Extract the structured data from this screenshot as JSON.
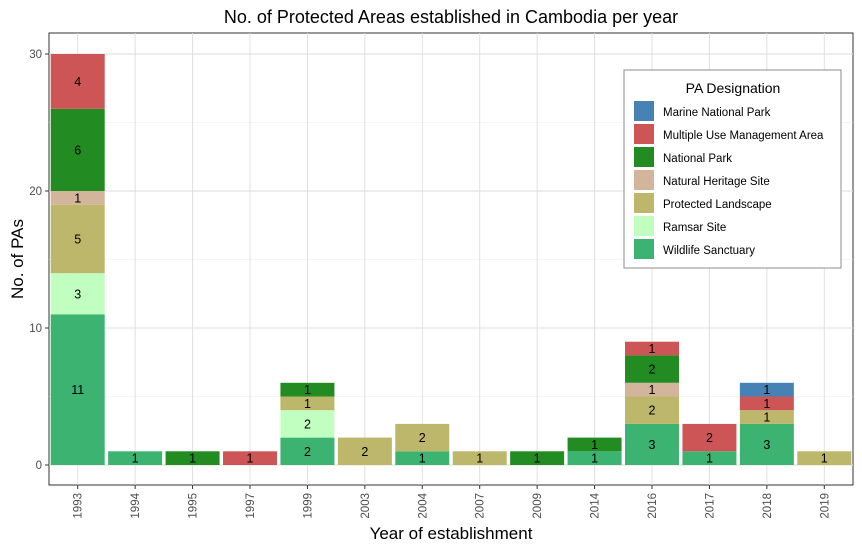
{
  "chart_data": {
    "type": "bar",
    "stacked": true,
    "title": "No. of Protected Areas established in Cambodia per year",
    "xlabel": "Year of establishment",
    "ylabel": "No. of PAs",
    "ylim": [
      0,
      31
    ],
    "yticks": [
      0,
      10,
      20,
      30
    ],
    "grid": true,
    "legend_placement": "top-right",
    "legend_title": "PA Designation",
    "categories": [
      "1993",
      "1994",
      "1995",
      "1997",
      "1999",
      "2003",
      "2004",
      "2007",
      "2009",
      "2014",
      "2016",
      "2017",
      "2018",
      "2019"
    ],
    "stack_order": [
      "Wildlife Sanctuary",
      "Ramsar Site",
      "Protected Landscape",
      "Natural Heritage Site",
      "National Park",
      "Multiple Use Management Area",
      "Marine National Park"
    ],
    "series": [
      {
        "name": "Marine National Park",
        "color": "#4682B4",
        "values": [
          0,
          0,
          0,
          0,
          0,
          0,
          0,
          0,
          0,
          0,
          0,
          0,
          1,
          0
        ]
      },
      {
        "name": "Multiple Use Management Area",
        "color": "#CD5555",
        "values": [
          4,
          0,
          0,
          1,
          0,
          0,
          0,
          0,
          0,
          0,
          1,
          2,
          1,
          0
        ]
      },
      {
        "name": "National Park",
        "color": "#228B22",
        "values": [
          6,
          0,
          1,
          0,
          1,
          0,
          0,
          0,
          1,
          1,
          2,
          0,
          0,
          0
        ]
      },
      {
        "name": "Natural Heritage Site",
        "color": "#D2B59B",
        "values": [
          1,
          0,
          0,
          0,
          0,
          0,
          0,
          0,
          0,
          0,
          1,
          0,
          0,
          0
        ]
      },
      {
        "name": "Protected Landscape",
        "color": "#BDB76B",
        "values": [
          5,
          0,
          0,
          0,
          1,
          2,
          2,
          1,
          0,
          0,
          2,
          0,
          1,
          1
        ]
      },
      {
        "name": "Ramsar Site",
        "color": "#C1FFC1",
        "values": [
          3,
          0,
          0,
          0,
          2,
          0,
          0,
          0,
          0,
          0,
          0,
          0,
          0,
          0
        ]
      },
      {
        "name": "Wildlife Sanctuary",
        "color": "#3CB371",
        "values": [
          11,
          1,
          0,
          0,
          2,
          0,
          1,
          0,
          0,
          1,
          3,
          1,
          3,
          0
        ]
      }
    ]
  }
}
